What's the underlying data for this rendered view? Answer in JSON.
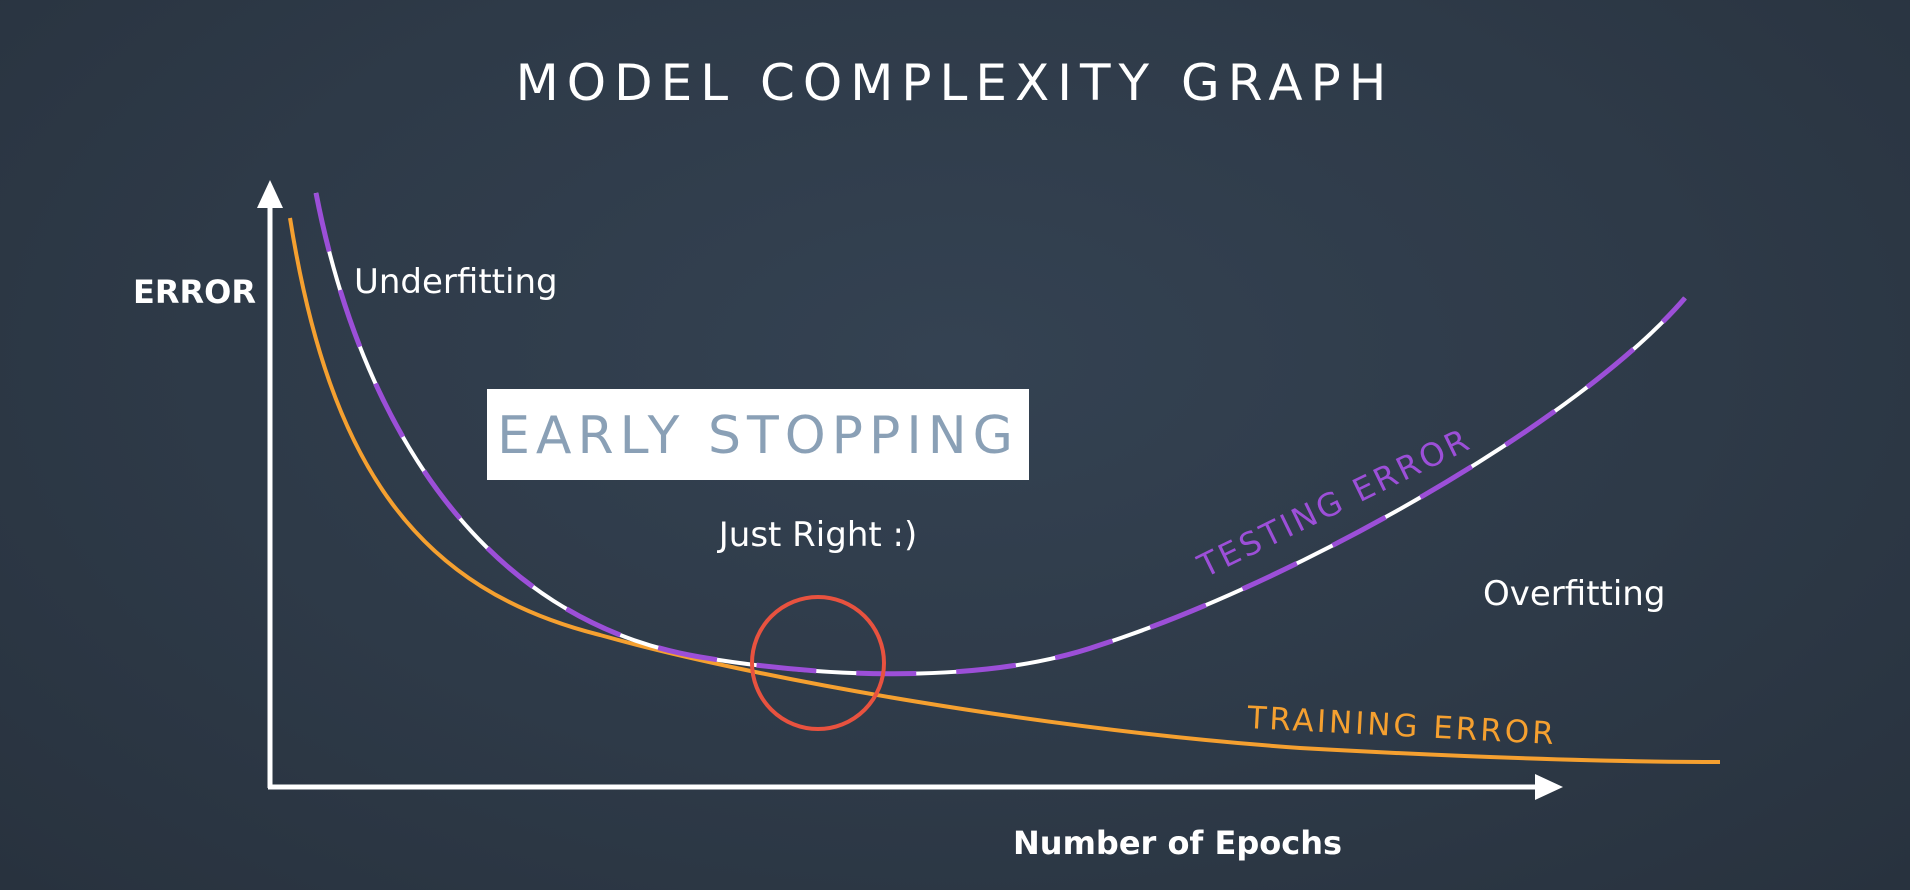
{
  "title": "MODEL COMPLEXITY GRAPH",
  "axes": {
    "y_label": "ERROR",
    "x_label": "Number of Epochs"
  },
  "regions": {
    "underfitting": "Underfitting",
    "just_right": "Just Right :)",
    "overfitting": "Overfitting"
  },
  "callout": {
    "early_stopping": "EARLY STOPPING"
  },
  "curves": {
    "testing_label": "TESTING ERROR",
    "training_label": "TRAINING ERROR"
  },
  "colors": {
    "background": "#2e3a48",
    "testing_curve": "#9c4fd8",
    "testing_dash": "#ffffff",
    "training_curve": "#f5a030",
    "marker_circle": "#e8523f",
    "axis": "#ffffff",
    "callout_box": "#ffffff",
    "callout_text": "#8aa0b6"
  }
}
